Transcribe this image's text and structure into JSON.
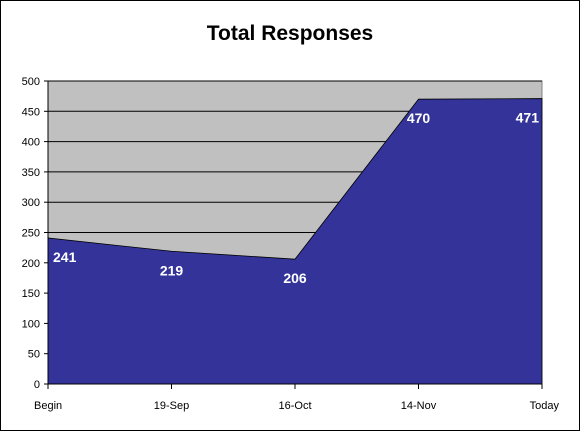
{
  "chart_data": {
    "type": "area",
    "title": "Total Responses",
    "xlabel": "",
    "ylabel": "",
    "categories": [
      "Begin",
      "19-Sep",
      "16-Oct",
      "14-Nov",
      "Today"
    ],
    "series": [
      {
        "values": [
          241,
          219,
          206,
          470,
          471
        ]
      }
    ],
    "data_labels": [
      "241",
      "219",
      "206",
      "470",
      "471"
    ],
    "ylim": [
      0,
      500
    ],
    "y_ticks": [
      0,
      50,
      100,
      150,
      200,
      250,
      300,
      350,
      400,
      450,
      500
    ],
    "grid": true,
    "legend": "none",
    "colors": {
      "fill": "#333399",
      "plot_background": "#c0c0c0",
      "gridline": "#000000",
      "data_label": "#ffffff"
    }
  }
}
